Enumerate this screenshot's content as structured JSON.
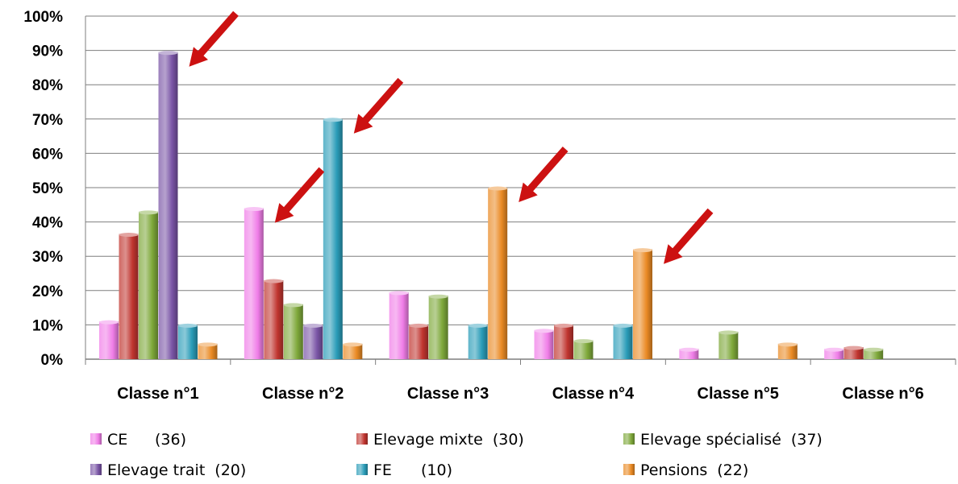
{
  "chart_data": {
    "type": "bar",
    "title": "",
    "xlabel": "",
    "ylabel": "",
    "ylim": [
      0,
      100
    ],
    "yticks": [
      "0%",
      "10%",
      "20%",
      "30%",
      "40%",
      "50%",
      "60%",
      "70%",
      "80%",
      "90%",
      "100%"
    ],
    "categories": [
      "Classe n°1",
      "Classe n°2",
      "Classe n°3",
      "Classe n°4",
      "Classe n°5",
      "Classe n°6"
    ],
    "series": [
      {
        "name": "CE",
        "count": "(36)",
        "color": "#f07ee8",
        "values": [
          11,
          44,
          19.5,
          8.5,
          3,
          3
        ]
      },
      {
        "name": "Elevage mixte",
        "count": "(30)",
        "color": "#c0352f",
        "values": [
          36.5,
          23,
          10,
          10,
          0,
          3.5
        ]
      },
      {
        "name": "Elevage spécialisé",
        "count": "(37)",
        "color": "#7ea83a",
        "values": [
          43,
          16,
          18.5,
          5.5,
          8,
          3
        ]
      },
      {
        "name": "Elevage trait",
        "count": "(20)",
        "color": "#7a55a6",
        "values": [
          89.5,
          10,
          0,
          0,
          0,
          0
        ]
      },
      {
        "name": "FE",
        "count": "(10)",
        "color": "#2a9cb8",
        "values": [
          10,
          70,
          10,
          10,
          0,
          0
        ]
      },
      {
        "name": "Pensions",
        "count": "(22)",
        "color": "#ea8a24",
        "values": [
          4.5,
          4.5,
          50,
          32,
          4.5,
          0
        ]
      }
    ],
    "grid": "horizontal",
    "legend_position": "bottom",
    "annotations": [
      {
        "type": "arrow",
        "color": "#cc1111",
        "category": "Classe n°1",
        "series": "Elevage trait"
      },
      {
        "type": "arrow",
        "color": "#cc1111",
        "category": "Classe n°2",
        "series": "CE"
      },
      {
        "type": "arrow",
        "color": "#cc1111",
        "category": "Classe n°2",
        "series": "FE"
      },
      {
        "type": "arrow",
        "color": "#cc1111",
        "category": "Classe n°3",
        "series": "Pensions"
      },
      {
        "type": "arrow",
        "color": "#cc1111",
        "category": "Classe n°4",
        "series": "Pensions"
      }
    ]
  }
}
